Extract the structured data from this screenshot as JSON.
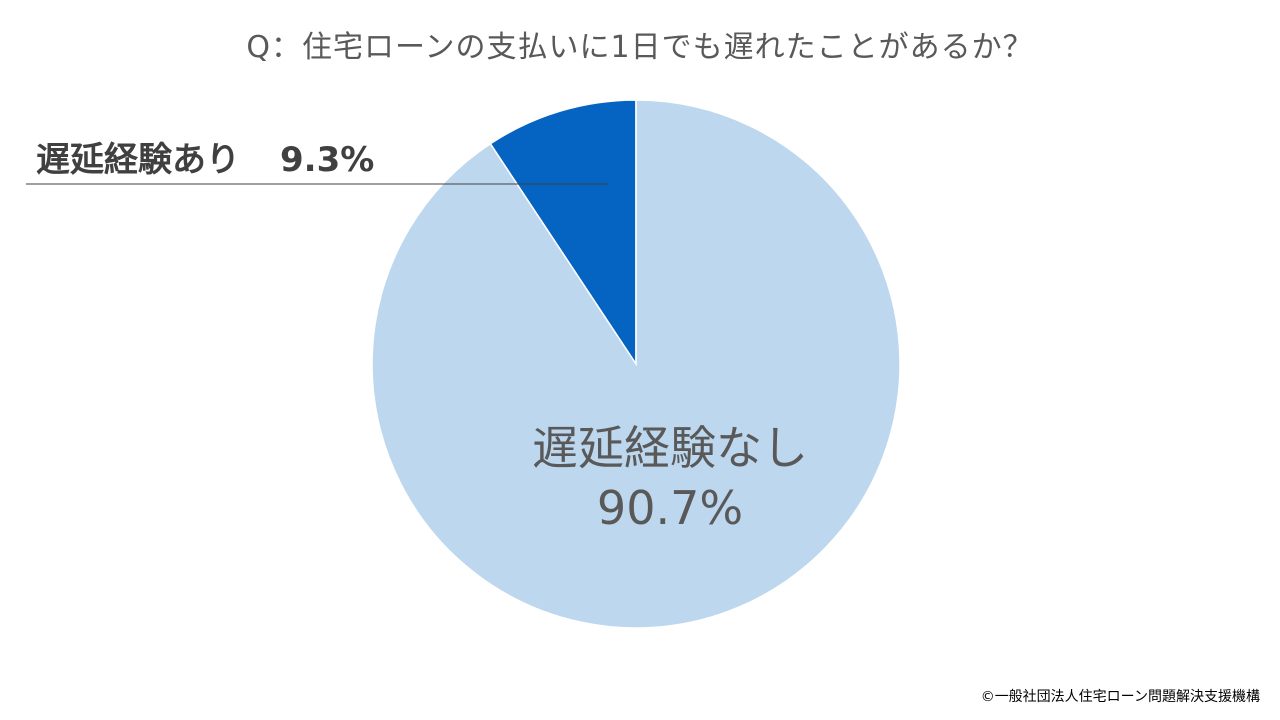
{
  "title": "Q：住宅ローンの支払いに1日でも遅れたことがあるか？",
  "credit": "©一般社団法人住宅ローン問題解決支援機構",
  "chart_data": {
    "type": "pie",
    "title": "Q：住宅ローンの支払いに1日でも遅れたことがあるか？",
    "slices": [
      {
        "label": "遅延経験あり",
        "value": 9.3,
        "value_label": "9.3%",
        "color": "#0563C1"
      },
      {
        "label": "遅延経験なし",
        "value": 90.7,
        "value_label": "90.7%",
        "color": "#BDD7EE"
      }
    ],
    "start_angle_deg": 0,
    "direction": "counterclockwise"
  }
}
